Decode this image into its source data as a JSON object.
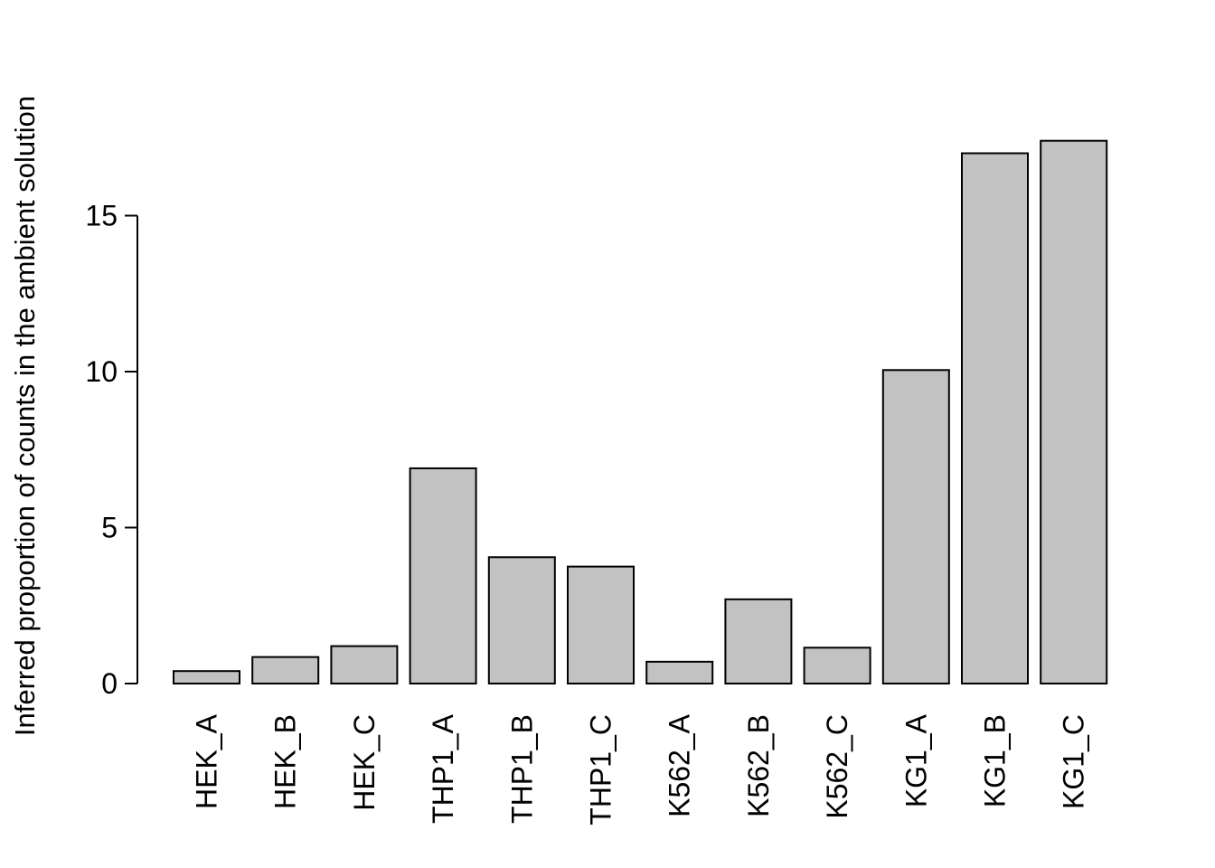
{
  "chart_data": {
    "type": "bar",
    "categories": [
      "HEK_A",
      "HEK_B",
      "HEK_C",
      "THP1_A",
      "THP1_B",
      "THP1_C",
      "K562_A",
      "K562_B",
      "K562_C",
      "KG1_A",
      "KG1_B",
      "KG1_C"
    ],
    "values": [
      0.4,
      0.85,
      1.2,
      6.9,
      4.05,
      3.75,
      0.7,
      2.7,
      1.15,
      10.05,
      17.0,
      17.4
    ],
    "title": "",
    "xlabel": "",
    "ylabel": "Inferred proportion of counts in the ambient solution",
    "ylim": [
      0,
      17.5
    ],
    "yticks": [
      0,
      5,
      10,
      15
    ],
    "ytick_labels": [
      "0",
      "5",
      "10",
      "15"
    ],
    "grid": false,
    "legend": null,
    "x_label_rotation": 90,
    "colors": {
      "bar_fill": "#c2c2c2",
      "bar_border": "#000000",
      "axis": "#000000",
      "text": "#000000",
      "background": "#ffffff"
    }
  }
}
